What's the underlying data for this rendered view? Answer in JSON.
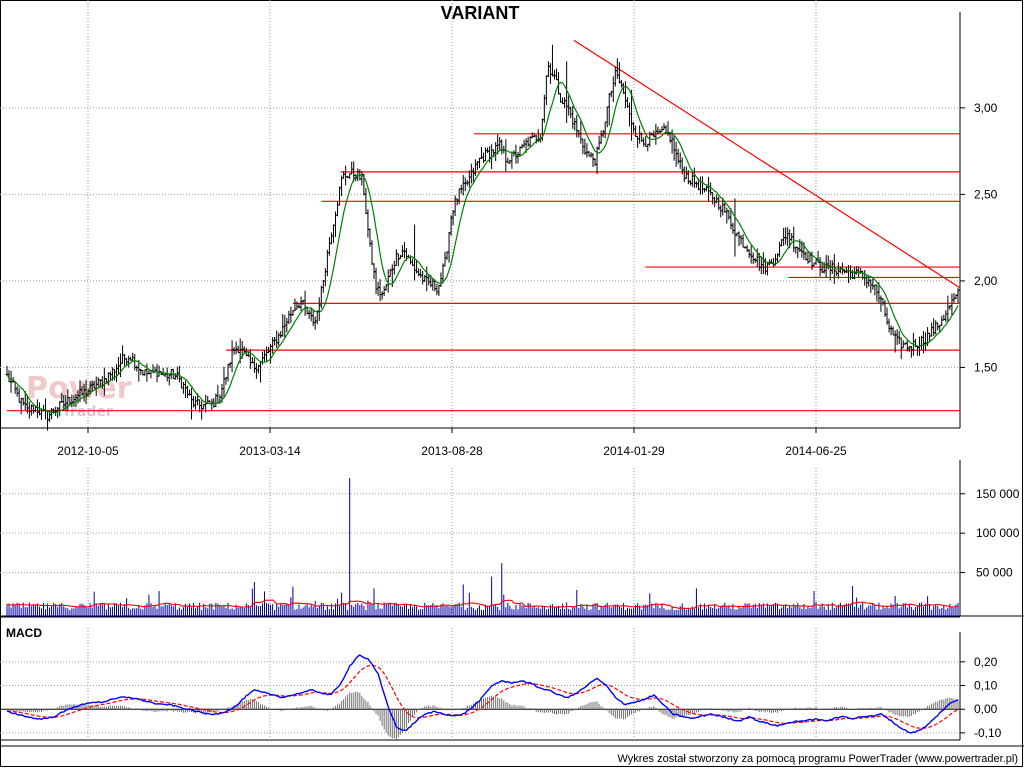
{
  "title": "VARIANT",
  "watermark": {
    "brand": "Power",
    "sub": "Trader"
  },
  "footer": "Wykres został stworzony za pomocą programu PowerTrader (www.powertrader.pl)",
  "colors": {
    "price_bar": "#000000",
    "price_ma": "#008000",
    "support_lines": "#ff0000",
    "trend_line": "#ff0000",
    "volume_bar": "#0000a0",
    "volume_ma": "#ff0000",
    "macd_line": "#0000ff",
    "signal_line": "#ff0000",
    "histogram": "#6f6f6f",
    "grid": "#9a9a9a"
  },
  "chart_data": [
    {
      "type": "ohlc",
      "panel": "price",
      "x_tick_labels": [
        "2012-10-05",
        "2013-03-14",
        "2013-08-28",
        "2014-01-29",
        "2014-06-25"
      ],
      "y_tick_labels": [
        "3,00",
        "2,50",
        "2,00",
        "1,50"
      ],
      "y_ticks": [
        3.0,
        2.5,
        2.0,
        1.5
      ],
      "ylim": [
        1.15,
        3.45
      ],
      "grid": true,
      "moving_average": true,
      "series_close": [
        1.45,
        1.38,
        1.3,
        1.25,
        1.27,
        1.24,
        1.22,
        1.26,
        1.28,
        1.31,
        1.33,
        1.35,
        1.37,
        1.4,
        1.42,
        1.46,
        1.5,
        1.55,
        1.57,
        1.51,
        1.47,
        1.46,
        1.48,
        1.45,
        1.46,
        1.44,
        1.38,
        1.3,
        1.28,
        1.28,
        1.29,
        1.33,
        1.45,
        1.6,
        1.62,
        1.55,
        1.5,
        1.53,
        1.58,
        1.64,
        1.7,
        1.78,
        1.85,
        1.88,
        1.8,
        1.76,
        1.95,
        2.2,
        2.4,
        2.6,
        2.62,
        2.62,
        2.58,
        2.2,
        1.95,
        1.92,
        2.05,
        2.15,
        2.18,
        2.1,
        2.05,
        2.0,
        1.98,
        1.96,
        2.1,
        2.4,
        2.5,
        2.55,
        2.62,
        2.7,
        2.73,
        2.75,
        2.78,
        2.7,
        2.72,
        2.75,
        2.8,
        2.82,
        2.85,
        3.25,
        3.18,
        3.05,
        3.0,
        2.9,
        2.8,
        2.72,
        2.7,
        2.85,
        3.05,
        3.2,
        3.1,
        2.95,
        2.85,
        2.8,
        2.82,
        2.84,
        2.86,
        2.83,
        2.7,
        2.62,
        2.58,
        2.56,
        2.52,
        2.49,
        2.45,
        2.4,
        2.32,
        2.25,
        2.2,
        2.15,
        2.1,
        2.08,
        2.12,
        2.2,
        2.28,
        2.22,
        2.18,
        2.14,
        2.1,
        2.08,
        2.07,
        2.07,
        2.06,
        2.05,
        2.04,
        2.03,
        2.0,
        1.95,
        1.85,
        1.72,
        1.65,
        1.63,
        1.62,
        1.64,
        1.66,
        1.7,
        1.74,
        1.8,
        1.87,
        1.92
      ],
      "horizontal_levels": [
        {
          "y": 2.85,
          "from": 0.49,
          "to": 1.0
        },
        {
          "y": 2.63,
          "from": 0.35,
          "to": 1.0
        },
        {
          "y": 2.46,
          "from": 0.33,
          "to": 1.0
        },
        {
          "y": 2.08,
          "from": 0.67,
          "to": 1.0
        },
        {
          "y": 2.02,
          "from": 0.82,
          "to": 1.0
        },
        {
          "y": 1.87,
          "from": 0.3,
          "to": 1.0
        },
        {
          "y": 1.6,
          "from": 0.23,
          "to": 1.0
        },
        {
          "y": 1.25,
          "from": 0.0,
          "to": 1.0
        }
      ],
      "trend_line": {
        "x0": 0.595,
        "y0": 3.39,
        "x1": 1.0,
        "y1": 1.96
      }
    },
    {
      "type": "bar",
      "panel": "volume",
      "y_tick_labels": [
        "150 000",
        "100 000",
        "50 000"
      ],
      "y_ticks": [
        150000,
        100000,
        50000
      ],
      "ylim": [
        0,
        170000
      ],
      "grid": true,
      "moving_average": true,
      "spikes": [
        {
          "x": 0.36,
          "value": 170000
        },
        {
          "x": 0.52,
          "value": 62000
        },
        {
          "x": 0.51,
          "value": 45000
        },
        {
          "x": 0.26,
          "value": 38000
        },
        {
          "x": 0.3,
          "value": 32000
        },
        {
          "x": 0.385,
          "value": 30000
        },
        {
          "x": 0.48,
          "value": 35000
        },
        {
          "x": 0.89,
          "value": 33000
        },
        {
          "x": 0.6,
          "value": 28000
        },
        {
          "x": 0.15,
          "value": 22000
        }
      ],
      "baseline_level": 8000
    },
    {
      "type": "line",
      "panel": "macd",
      "label": "MACD",
      "y_tick_labels": [
        "0,20",
        "0,10",
        "0,00",
        "-0,10"
      ],
      "y_ticks": [
        0.2,
        0.1,
        0.0,
        -0.1
      ],
      "ylim": [
        -0.13,
        0.25
      ],
      "grid": true,
      "macd_values": [
        -0.01,
        -0.02,
        -0.03,
        -0.04,
        -0.04,
        -0.03,
        -0.01,
        0.01,
        0.02,
        0.03,
        0.03,
        0.04,
        0.05,
        0.05,
        0.04,
        0.03,
        0.02,
        0.02,
        0.01,
        0.0,
        -0.01,
        -0.02,
        -0.02,
        -0.01,
        0.01,
        0.05,
        0.08,
        0.07,
        0.06,
        0.05,
        0.06,
        0.07,
        0.08,
        0.07,
        0.06,
        0.1,
        0.18,
        0.23,
        0.21,
        0.15,
        0.02,
        -0.08,
        -0.09,
        -0.05,
        -0.02,
        -0.01,
        -0.02,
        -0.03,
        -0.02,
        0.01,
        0.05,
        0.1,
        0.12,
        0.11,
        0.12,
        0.11,
        0.09,
        0.08,
        0.06,
        0.05,
        0.07,
        0.1,
        0.13,
        0.1,
        0.05,
        0.02,
        0.03,
        0.04,
        0.06,
        0.02,
        -0.02,
        -0.03,
        -0.04,
        -0.03,
        -0.02,
        -0.03,
        -0.04,
        -0.05,
        -0.03,
        -0.05,
        -0.06,
        -0.07,
        -0.06,
        -0.05,
        -0.05,
        -0.04,
        -0.05,
        -0.04,
        -0.03,
        -0.04,
        -0.03,
        -0.03,
        -0.02,
        -0.05,
        -0.08,
        -0.1,
        -0.09,
        -0.06,
        -0.02,
        0.02,
        0.04
      ]
    }
  ]
}
